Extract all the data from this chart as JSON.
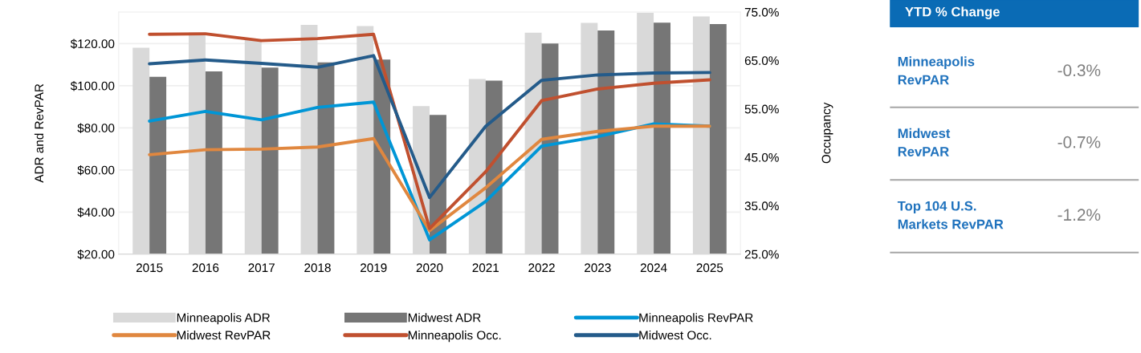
{
  "chart_data": [
    {
      "type": "bar",
      "ylabel": "ADR and RevPAR",
      "y2label": "Occupancy",
      "categories": [
        "2015",
        "2016",
        "2017",
        "2018",
        "2019",
        "2020",
        "2021",
        "2022",
        "2023",
        "2024",
        "2025"
      ],
      "series": [
        {
          "name": "Minneapolis ADR",
          "type": "bar",
          "color": "#d9d9d9",
          "values": [
            118.0,
            125.3,
            122.0,
            128.9,
            128.3,
            90.3,
            103.2,
            125.2,
            129.8,
            134.6,
            132.9
          ]
        },
        {
          "name": "Midwest ADR",
          "type": "bar",
          "color": "#767676",
          "values": [
            104.2,
            106.8,
            108.6,
            111.1,
            112.4,
            86.1,
            102.4,
            120.0,
            126.2,
            129.9,
            129.3
          ]
        },
        {
          "name": "Minneapolis RevPAR",
          "type": "line",
          "color": "#0096d6",
          "values": [
            83.2,
            87.8,
            83.8,
            89.7,
            92.2,
            26.8,
            45.0,
            71.3,
            75.8,
            81.9,
            80.8
          ]
        },
        {
          "name": "Midwest RevPAR",
          "type": "line",
          "color": "#e0873f",
          "values": [
            67.2,
            69.6,
            69.9,
            70.9,
            74.9,
            31.2,
            51.5,
            74.5,
            78.3,
            80.8,
            80.8
          ]
        },
        {
          "name": "Minneapolis Occ.",
          "type": "line",
          "axis": "y2",
          "color": "#c0502f",
          "values": [
            70.4,
            70.5,
            69.1,
            69.5,
            70.4,
            30.3,
            42.0,
            56.7,
            59.1,
            60.3,
            61.0
          ]
        },
        {
          "name": "Midwest Occ.",
          "type": "line",
          "axis": "y2",
          "color": "#245b8a",
          "values": [
            64.3,
            65.1,
            64.4,
            63.6,
            66.0,
            36.7,
            51.4,
            60.9,
            62.0,
            62.4,
            62.5
          ]
        }
      ],
      "ylim": [
        20,
        135
      ],
      "yticks": [
        {
          "value": 20,
          "label": "$20.00"
        },
        {
          "value": 40,
          "label": "$40.00"
        },
        {
          "value": 60,
          "label": "$60.00"
        },
        {
          "value": 80,
          "label": "$80.00"
        },
        {
          "value": 100,
          "label": "$100.00"
        },
        {
          "value": 120,
          "label": "$120.00"
        }
      ],
      "y2lim": [
        25,
        75
      ],
      "y2ticks": [
        {
          "value": 25,
          "label": "25.0%"
        },
        {
          "value": 35,
          "label": "35.0%"
        },
        {
          "value": 45,
          "label": "45.0%"
        },
        {
          "value": 55,
          "label": "55.0%"
        },
        {
          "value": 65,
          "label": "65.0%"
        },
        {
          "value": 75,
          "label": "75.0%"
        }
      ],
      "grid": "y",
      "legend": "bottom",
      "marker": "none",
      "line_style": "solid"
    },
    {
      "type": "other",
      "title": "YTD % Change",
      "categories": [
        "Minneapolis\nRevPAR",
        "Midwest\nRevPAR",
        "Top 104 U.S.\nMarkets RevPAR"
      ],
      "value_labels": [
        "-0.3%",
        "-0.7%",
        "-1.2%"
      ]
    }
  ]
}
